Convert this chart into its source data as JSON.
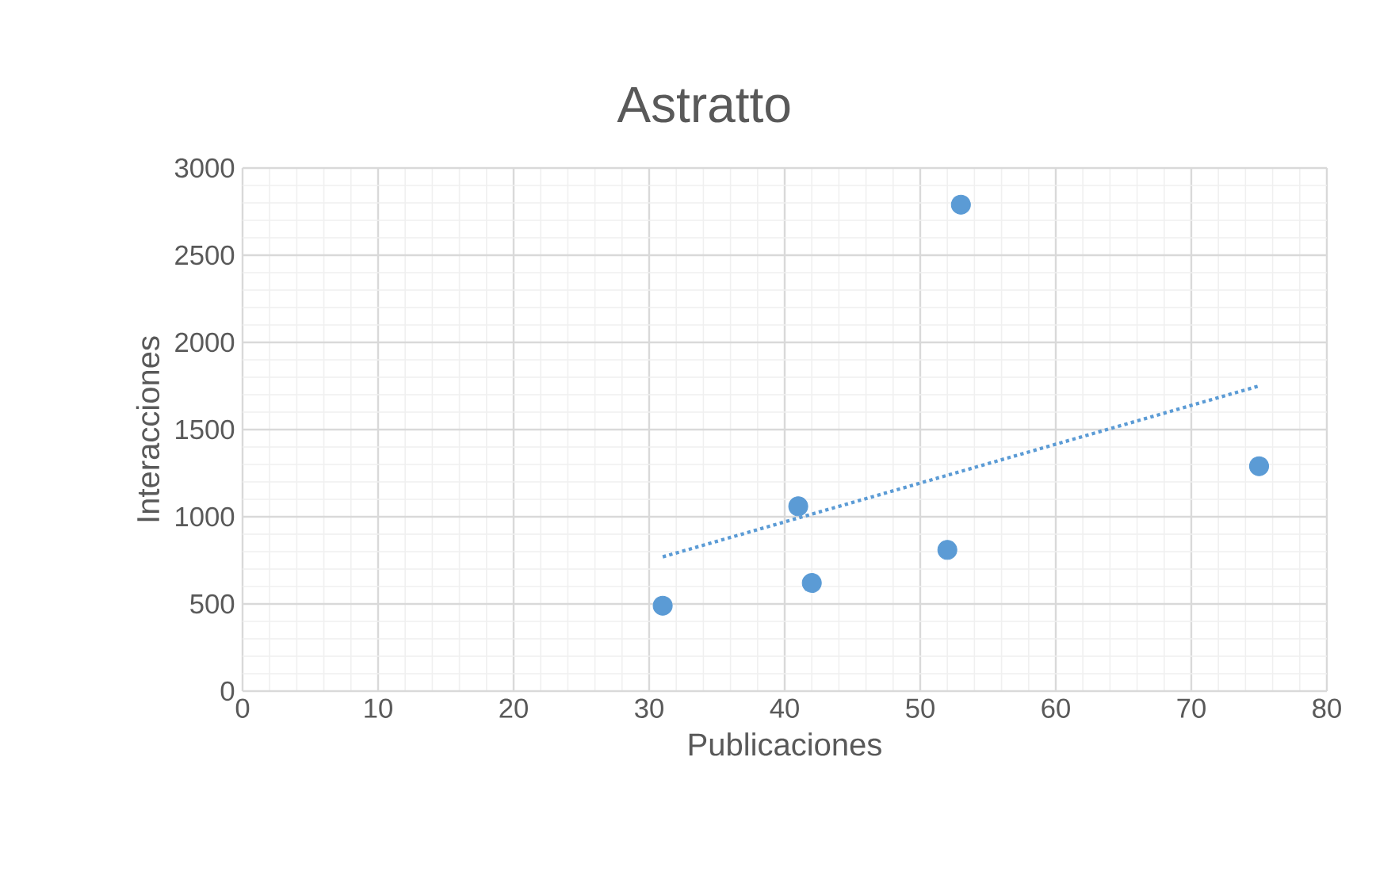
{
  "chart_data": {
    "type": "scatter",
    "title": "Astratto",
    "xlabel": "Publicaciones",
    "ylabel": "Interacciones",
    "xlim": [
      0,
      80
    ],
    "xticks": [
      0,
      10,
      20,
      30,
      40,
      50,
      60,
      70,
      80
    ],
    "ylim": [
      0,
      3000
    ],
    "yticks": [
      0,
      500,
      1000,
      1500,
      2000,
      2500,
      3000
    ],
    "grid": true,
    "series": [
      {
        "color": "#5b9bd5",
        "marker": "circle",
        "x": [
          31,
          41,
          42,
          52,
          53,
          75
        ],
        "values": [
          490,
          1060,
          620,
          810,
          2790,
          1290
        ]
      },
      {
        "type": "line",
        "color": "#5b9bd5",
        "marker": "none",
        "line_style": "dotted",
        "x": [
          31,
          75
        ],
        "values": [
          770,
          1750
        ]
      }
    ]
  }
}
